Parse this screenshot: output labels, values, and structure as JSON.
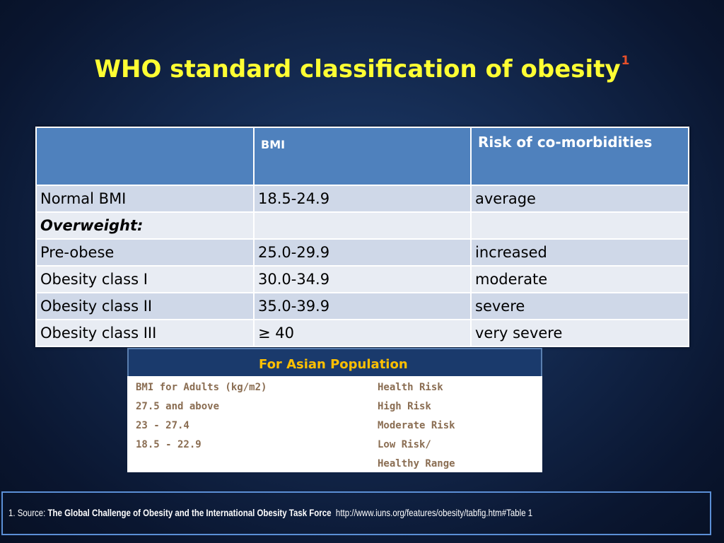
{
  "title": {
    "text": "WHO standard classification of obesity",
    "footnote_marker": "1"
  },
  "who_table": {
    "headers": [
      "",
      "BMI",
      "Risk of co-morbidities"
    ],
    "rows": [
      {
        "label": "Normal BMI",
        "bmi": "18.5-24.9",
        "risk": "average"
      },
      {
        "label": "Overweight:",
        "bmi": "",
        "risk": ""
      },
      {
        "label": "Pre-obese",
        "bmi": "25.0-29.9",
        "risk": "increased"
      },
      {
        "label": "Obesity class I",
        "bmi": "30.0-34.9",
        "risk": "moderate"
      },
      {
        "label": "Obesity class II",
        "bmi": "35.0-39.9",
        "risk": "severe"
      },
      {
        "label": "Obesity class III",
        "bmi": "≥ 40",
        "risk": "very severe"
      }
    ]
  },
  "asian_table": {
    "heading": "For Asian Population",
    "rows": [
      {
        "c1": "BMI for Adults (kg/m2)",
        "c2": "Health Risk"
      },
      {
        "c1": "27.5 and above",
        "c2": "High Risk"
      },
      {
        "c1": "23 - 27.4",
        "c2": "Moderate Risk"
      },
      {
        "c1": "18.5 - 22.9",
        "c2": "Low Risk/"
      },
      {
        "c1": "",
        "c2": "Healthy Range"
      }
    ]
  },
  "footer": {
    "prefix": "1. Source: ",
    "source_title": "The Global Challenge of Obesity and the International Obesity Task Force",
    "url": "http://www.iuns.org/features/obesity/tabfig.htm#Table 1"
  },
  "colors": {
    "title": "#ffff33",
    "footnote_marker": "#e8502a",
    "table_header": "#4f81bd",
    "asian_heading": "#ffc000",
    "footer_border": "#5b8fd6"
  }
}
